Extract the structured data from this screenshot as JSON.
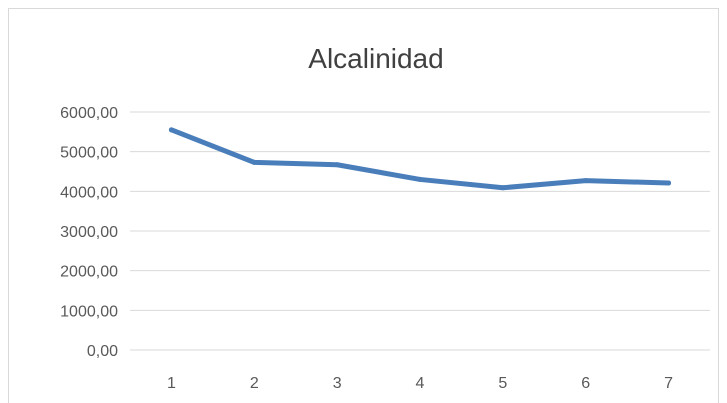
{
  "chart_data": {
    "type": "line",
    "title": "Alcalinidad",
    "xlabel": "",
    "ylabel": "",
    "categories": [
      "1",
      "2",
      "3",
      "4",
      "5",
      "6",
      "7"
    ],
    "series": [
      {
        "values": [
          5550,
          4730,
          4670,
          4300,
          4090,
          4270,
          4210
        ]
      }
    ],
    "ylim": [
      0,
      6000
    ],
    "y_ticks": [
      "0,00",
      "1000,00",
      "2000,00",
      "3000,00",
      "4000,00",
      "5000,00",
      "6000,00"
    ],
    "grid": true,
    "legend": "none",
    "colors": {
      "line": "#4a7ebb",
      "grid": "#d9d9d9",
      "text": "#595959",
      "title": "#404040"
    }
  }
}
